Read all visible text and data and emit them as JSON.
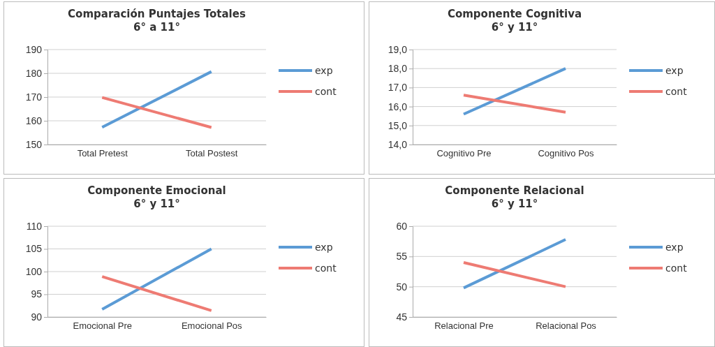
{
  "chart_data": [
    {
      "type": "line",
      "title": "Comparación Puntajes Totales\n6° a 11°",
      "categories": [
        "Total Pretest",
        "Total Postest"
      ],
      "series": [
        {
          "name": "exp",
          "color": "#5b9bd5",
          "values": [
            157.3,
            180.7
          ]
        },
        {
          "name": "cont",
          "color": "#ee7b73",
          "values": [
            169.8,
            157.2
          ]
        }
      ],
      "ylim": [
        150,
        190
      ],
      "yticks": [
        150,
        160,
        170,
        180,
        190
      ],
      "grid": "y",
      "legend": "right",
      "marker": "none",
      "line_style": "solid"
    },
    {
      "type": "line",
      "title": "Componente Cognitiva\n6° y 11°",
      "categories": [
        "Cognitivo Pre",
        "Cognitivo Pos"
      ],
      "series": [
        {
          "name": "exp",
          "color": "#5b9bd5",
          "values": [
            15.6,
            18.0
          ]
        },
        {
          "name": "cont",
          "color": "#ee7b73",
          "values": [
            16.6,
            15.7
          ]
        }
      ],
      "ylim": [
        14,
        19
      ],
      "yticks": [
        {
          "value": 14,
          "label": "14,0"
        },
        {
          "value": 15,
          "label": "15,0"
        },
        {
          "value": 16,
          "label": "16,0"
        },
        {
          "value": 17,
          "label": "17,0"
        },
        {
          "value": 18,
          "label": "18,0"
        },
        {
          "value": 19,
          "label": "19,0"
        }
      ],
      "grid": "y",
      "legend": "right",
      "marker": "none",
      "line_style": "solid"
    },
    {
      "type": "line",
      "title": "Componente Emocional\n6° y 11°",
      "categories": [
        "Emocional Pre",
        "Emocional Pos"
      ],
      "series": [
        {
          "name": "exp",
          "color": "#5b9bd5",
          "values": [
            91.7,
            105.0
          ]
        },
        {
          "name": "cont",
          "color": "#ee7b73",
          "values": [
            98.9,
            91.4
          ]
        }
      ],
      "ylim": [
        90,
        110
      ],
      "yticks": [
        90,
        95,
        100,
        105,
        110
      ],
      "grid": "y",
      "legend": "right",
      "marker": "none",
      "line_style": "solid"
    },
    {
      "type": "line",
      "title": "Componente Relacional\n6° y 11°",
      "categories": [
        "Relacional Pre",
        "Relacional Pos"
      ],
      "series": [
        {
          "name": "exp",
          "color": "#5b9bd5",
          "values": [
            49.8,
            57.8
          ]
        },
        {
          "name": "cont",
          "color": "#ee7b73",
          "values": [
            54.0,
            50.0
          ]
        }
      ],
      "ylim": [
        45,
        60
      ],
      "yticks": [
        45,
        50,
        55,
        60
      ],
      "grid": "y",
      "legend": "right",
      "marker": "none",
      "line_style": "solid"
    }
  ]
}
